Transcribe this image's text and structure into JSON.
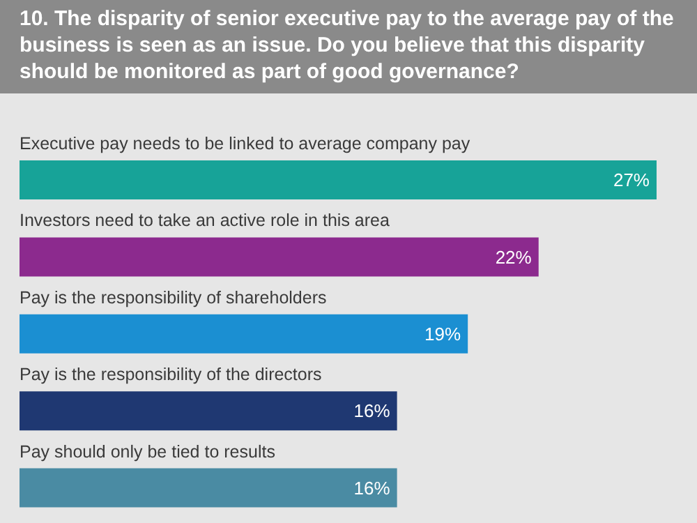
{
  "chart_data": {
    "type": "bar",
    "orientation": "horizontal",
    "title": "10. The disparity of senior executive pay to the average pay of the business is seen as an issue. Do you believe that this disparity should be monitored as part of good governance?",
    "categories": [
      "Executive pay needs to be linked to average company pay",
      "Investors need to take an active role in this area",
      "Pay is the responsibility of shareholders",
      "Pay is the responsibility of the directors",
      "Pay should only be tied to results"
    ],
    "values": [
      27,
      22,
      19,
      16,
      16
    ],
    "value_labels": [
      "27%",
      "22%",
      "19%",
      "16%",
      "16%"
    ],
    "colors": [
      "#17a398",
      "#8c2a8e",
      "#1b8fd2",
      "#1f3872",
      "#4a8ba3"
    ]
  }
}
